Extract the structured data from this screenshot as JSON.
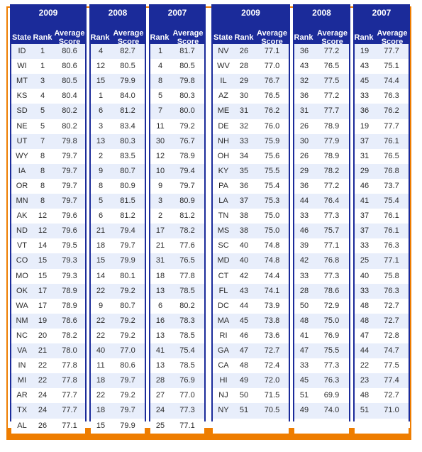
{
  "years": {
    "left_a": "2009",
    "left_b": "2008",
    "left_c": "2007",
    "right_a": "2009",
    "right_b": "2008",
    "right_c": "2007"
  },
  "headers": {
    "state": "State",
    "rank": "Rank",
    "avg_line1": "Average",
    "avg_line2": "Score"
  },
  "left_rows": [
    {
      "state": "ID",
      "r09": "1",
      "s09": "80.6",
      "r08": "4",
      "s08": "82.7",
      "r07": "1",
      "s07": "81.7"
    },
    {
      "state": "WI",
      "r09": "1",
      "s09": "80.6",
      "r08": "12",
      "s08": "80.5",
      "r07": "4",
      "s07": "80.5"
    },
    {
      "state": "MT",
      "r09": "3",
      "s09": "80.5",
      "r08": "15",
      "s08": "79.9",
      "r07": "8",
      "s07": "79.8"
    },
    {
      "state": "KS",
      "r09": "4",
      "s09": "80.4",
      "r08": "1",
      "s08": "84.0",
      "r07": "5",
      "s07": "80.3"
    },
    {
      "state": "SD",
      "r09": "5",
      "s09": "80.2",
      "r08": "6",
      "s08": "81.2",
      "r07": "7",
      "s07": "80.0"
    },
    {
      "state": "NE",
      "r09": "5",
      "s09": "80.2",
      "r08": "3",
      "s08": "83.4",
      "r07": "11",
      "s07": "79.2"
    },
    {
      "state": "UT",
      "r09": "7",
      "s09": "79.8",
      "r08": "13",
      "s08": "80.3",
      "r07": "30",
      "s07": "76.7"
    },
    {
      "state": "WY",
      "r09": "8",
      "s09": "79.7",
      "r08": "2",
      "s08": "83.5",
      "r07": "12",
      "s07": "78.9"
    },
    {
      "state": "IA",
      "r09": "8",
      "s09": "79.7",
      "r08": "9",
      "s08": "80.7",
      "r07": "10",
      "s07": "79.4"
    },
    {
      "state": "OR",
      "r09": "8",
      "s09": "79.7",
      "r08": "8",
      "s08": "80.9",
      "r07": "9",
      "s07": "79.7"
    },
    {
      "state": "MN",
      "r09": "8",
      "s09": "79.7",
      "r08": "5",
      "s08": "81.5",
      "r07": "3",
      "s07": "80.9"
    },
    {
      "state": "AK",
      "r09": "12",
      "s09": "79.6",
      "r08": "6",
      "s08": "81.2",
      "r07": "2",
      "s07": "81.2"
    },
    {
      "state": "ND",
      "r09": "12",
      "s09": "79.6",
      "r08": "21",
      "s08": "79.4",
      "r07": "17",
      "s07": "78.2"
    },
    {
      "state": "VT",
      "r09": "14",
      "s09": "79.5",
      "r08": "18",
      "s08": "79.7",
      "r07": "21",
      "s07": "77.6"
    },
    {
      "state": "CO",
      "r09": "15",
      "s09": "79.3",
      "r08": "15",
      "s08": "79.9",
      "r07": "31",
      "s07": "76.5"
    },
    {
      "state": "MO",
      "r09": "15",
      "s09": "79.3",
      "r08": "14",
      "s08": "80.1",
      "r07": "18",
      "s07": "77.8"
    },
    {
      "state": "OK",
      "r09": "17",
      "s09": "78.9",
      "r08": "22",
      "s08": "79.2",
      "r07": "13",
      "s07": "78.5"
    },
    {
      "state": "WA",
      "r09": "17",
      "s09": "78.9",
      "r08": "9",
      "s08": "80.7",
      "r07": "6",
      "s07": "80.2"
    },
    {
      "state": "NM",
      "r09": "19",
      "s09": "78.6",
      "r08": "22",
      "s08": "79.2",
      "r07": "16",
      "s07": "78.3"
    },
    {
      "state": "NC",
      "r09": "20",
      "s09": "78.2",
      "r08": "22",
      "s08": "79.2",
      "r07": "13",
      "s07": "78.5"
    },
    {
      "state": "VA",
      "r09": "21",
      "s09": "78.0",
      "r08": "40",
      "s08": "77.0",
      "r07": "41",
      "s07": "75.4"
    },
    {
      "state": "IN",
      "r09": "22",
      "s09": "77.8",
      "r08": "11",
      "s08": "80.6",
      "r07": "13",
      "s07": "78.5"
    },
    {
      "state": "MI",
      "r09": "22",
      "s09": "77.8",
      "r08": "18",
      "s08": "79.7",
      "r07": "28",
      "s07": "76.9"
    },
    {
      "state": "AR",
      "r09": "24",
      "s09": "77.7",
      "r08": "22",
      "s08": "79.2",
      "r07": "27",
      "s07": "77.0"
    },
    {
      "state": "TX",
      "r09": "24",
      "s09": "77.7",
      "r08": "18",
      "s08": "79.7",
      "r07": "24",
      "s07": "77.3"
    },
    {
      "state": "AL",
      "r09": "26",
      "s09": "77.1",
      "r08": "15",
      "s08": "79.9",
      "r07": "25",
      "s07": "77.1"
    }
  ],
  "right_rows": [
    {
      "state": "NV",
      "r09": "26",
      "s09": "77.1",
      "r08": "36",
      "s08": "77.2",
      "r07": "19",
      "s07": "77.7"
    },
    {
      "state": "WV",
      "r09": "28",
      "s09": "77.0",
      "r08": "43",
      "s08": "76.5",
      "r07": "43",
      "s07": "75.1"
    },
    {
      "state": "IL",
      "r09": "29",
      "s09": "76.7",
      "r08": "32",
      "s08": "77.5",
      "r07": "45",
      "s07": "74.4"
    },
    {
      "state": "AZ",
      "r09": "30",
      "s09": "76.5",
      "r08": "36",
      "s08": "77.2",
      "r07": "33",
      "s07": "76.3"
    },
    {
      "state": "ME",
      "r09": "31",
      "s09": "76.2",
      "r08": "31",
      "s08": "77.7",
      "r07": "36",
      "s07": "76.2"
    },
    {
      "state": "DE",
      "r09": "32",
      "s09": "76.0",
      "r08": "26",
      "s08": "78.9",
      "r07": "19",
      "s07": "77.7"
    },
    {
      "state": "NH",
      "r09": "33",
      "s09": "75.9",
      "r08": "30",
      "s08": "77.9",
      "r07": "37",
      "s07": "76.1"
    },
    {
      "state": "OH",
      "r09": "34",
      "s09": "75.6",
      "r08": "26",
      "s08": "78.9",
      "r07": "31",
      "s07": "76.5"
    },
    {
      "state": "KY",
      "r09": "35",
      "s09": "75.5",
      "r08": "29",
      "s08": "78.2",
      "r07": "29",
      "s07": "76.8"
    },
    {
      "state": "PA",
      "r09": "36",
      "s09": "75.4",
      "r08": "36",
      "s08": "77.2",
      "r07": "46",
      "s07": "73.7"
    },
    {
      "state": "LA",
      "r09": "37",
      "s09": "75.3",
      "r08": "44",
      "s08": "76.4",
      "r07": "41",
      "s07": "75.4"
    },
    {
      "state": "TN",
      "r09": "38",
      "s09": "75.0",
      "r08": "33",
      "s08": "77.3",
      "r07": "37",
      "s07": "76.1"
    },
    {
      "state": "MS",
      "r09": "38",
      "s09": "75.0",
      "r08": "46",
      "s08": "75.7",
      "r07": "37",
      "s07": "76.1"
    },
    {
      "state": "SC",
      "r09": "40",
      "s09": "74.8",
      "r08": "39",
      "s08": "77.1",
      "r07": "33",
      "s07": "76.3"
    },
    {
      "state": "MD",
      "r09": "40",
      "s09": "74.8",
      "r08": "42",
      "s08": "76.8",
      "r07": "25",
      "s07": "77.1"
    },
    {
      "state": "CT",
      "r09": "42",
      "s09": "74.4",
      "r08": "33",
      "s08": "77.3",
      "r07": "40",
      "s07": "75.8"
    },
    {
      "state": "FL",
      "r09": "43",
      "s09": "74.1",
      "r08": "28",
      "s08": "78.6",
      "r07": "33",
      "s07": "76.3"
    },
    {
      "state": "DC",
      "r09": "44",
      "s09": "73.9",
      "r08": "50",
      "s08": "72.9",
      "r07": "48",
      "s07": "72.7"
    },
    {
      "state": "MA",
      "r09": "45",
      "s09": "73.8",
      "r08": "48",
      "s08": "75.0",
      "r07": "48",
      "s07": "72.7"
    },
    {
      "state": "RI",
      "r09": "46",
      "s09": "73.6",
      "r08": "41",
      "s08": "76.9",
      "r07": "47",
      "s07": "72.8"
    },
    {
      "state": "GA",
      "r09": "47",
      "s09": "72.7",
      "r08": "47",
      "s08": "75.5",
      "r07": "44",
      "s07": "74.7"
    },
    {
      "state": "CA",
      "r09": "48",
      "s09": "72.4",
      "r08": "33",
      "s08": "77.3",
      "r07": "22",
      "s07": "77.5"
    },
    {
      "state": "HI",
      "r09": "49",
      "s09": "72.0",
      "r08": "45",
      "s08": "76.3",
      "r07": "23",
      "s07": "77.4"
    },
    {
      "state": "NJ",
      "r09": "50",
      "s09": "71.5",
      "r08": "51",
      "s08": "69.9",
      "r07": "48",
      "s07": "72.7"
    },
    {
      "state": "NY",
      "r09": "51",
      "s09": "70.5",
      "r08": "49",
      "s08": "74.0",
      "r07": "51",
      "s07": "71.0"
    },
    {
      "state": "",
      "r09": "",
      "s09": "",
      "r08": "",
      "s08": "",
      "r07": "",
      "s07": ""
    }
  ]
}
